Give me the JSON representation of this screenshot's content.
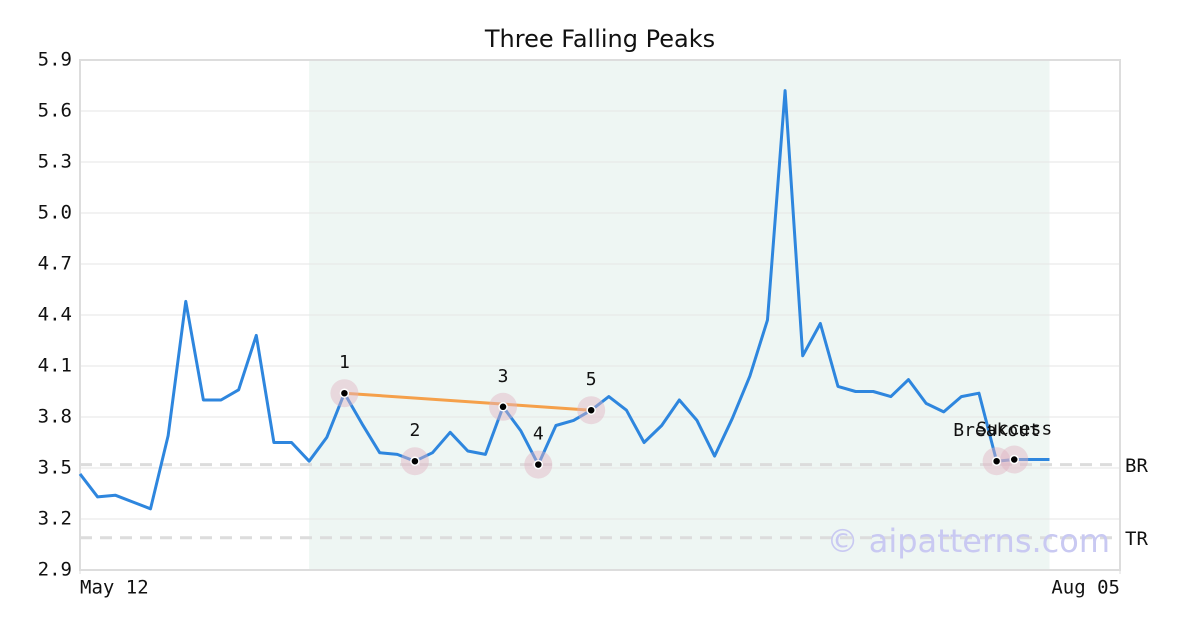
{
  "chart_data": {
    "type": "line",
    "title": "Three Falling Peaks",
    "x": [
      0,
      1,
      2,
      3,
      4,
      5,
      6,
      7,
      8,
      9,
      10,
      11,
      12,
      13,
      14,
      15,
      16,
      17,
      18,
      19,
      20,
      21,
      22,
      23,
      24,
      25,
      26,
      27,
      28,
      29,
      30,
      31,
      32,
      33,
      34,
      35,
      36,
      37,
      38,
      39,
      40,
      41,
      42,
      43,
      44,
      45,
      46,
      47,
      48,
      49,
      50,
      51,
      52,
      53,
      54,
      55
    ],
    "series": [
      {
        "color": "#2e86de",
        "values": [
          3.465,
          3.33,
          3.34,
          3.3,
          3.26,
          3.69,
          4.48,
          3.9,
          3.9,
          3.96,
          4.28,
          3.65,
          3.65,
          3.54,
          3.68,
          3.94,
          3.76,
          3.59,
          3.58,
          3.54,
          3.59,
          3.71,
          3.6,
          3.58,
          3.86,
          3.72,
          3.52,
          3.75,
          3.78,
          3.84,
          3.92,
          3.84,
          3.65,
          3.75,
          3.9,
          3.78,
          3.57,
          3.79,
          4.04,
          4.37,
          5.72,
          4.16,
          4.35,
          3.98,
          3.95,
          3.95,
          3.92,
          4.02,
          3.88,
          3.83,
          3.92,
          3.94,
          3.54,
          3.55,
          3.55,
          3.55
        ]
      }
    ],
    "xlim": [
      0,
      59
    ],
    "xticks": [
      {
        "value": 0,
        "label": "May 12"
      },
      {
        "value": 59,
        "label": "Aug 05"
      }
    ],
    "ylim": [
      2.9,
      5.9
    ],
    "yticks": [
      2.9,
      3.2,
      3.5,
      3.8,
      4.1,
      4.4,
      4.7,
      {
        "value": 5,
        "label": "5.0"
      },
      5.3,
      5.6,
      5.9
    ],
    "grid": true,
    "highlight": [
      13,
      55
    ],
    "hlines": [
      {
        "label": "BR",
        "y": 3.52
      },
      {
        "label": "TR",
        "y": 3.09
      }
    ],
    "trendline": {
      "color": "#f5a04a",
      "x": [
        15,
        29
      ],
      "y": [
        3.94,
        3.84
      ]
    },
    "markers": [
      {
        "label": "1",
        "x": 15,
        "y": 3.94
      },
      {
        "label": "2",
        "x": 19,
        "y": 3.54
      },
      {
        "label": "3",
        "x": 24,
        "y": 3.86
      },
      {
        "label": "4",
        "x": 26,
        "y": 3.52
      },
      {
        "label": "5",
        "x": 29,
        "y": 3.84
      },
      {
        "label": "Breakout",
        "x": 52,
        "y": 3.54
      },
      {
        "label": "Success",
        "x": 53,
        "y": 3.55
      }
    ],
    "watermark": "© aipatterns.com"
  }
}
